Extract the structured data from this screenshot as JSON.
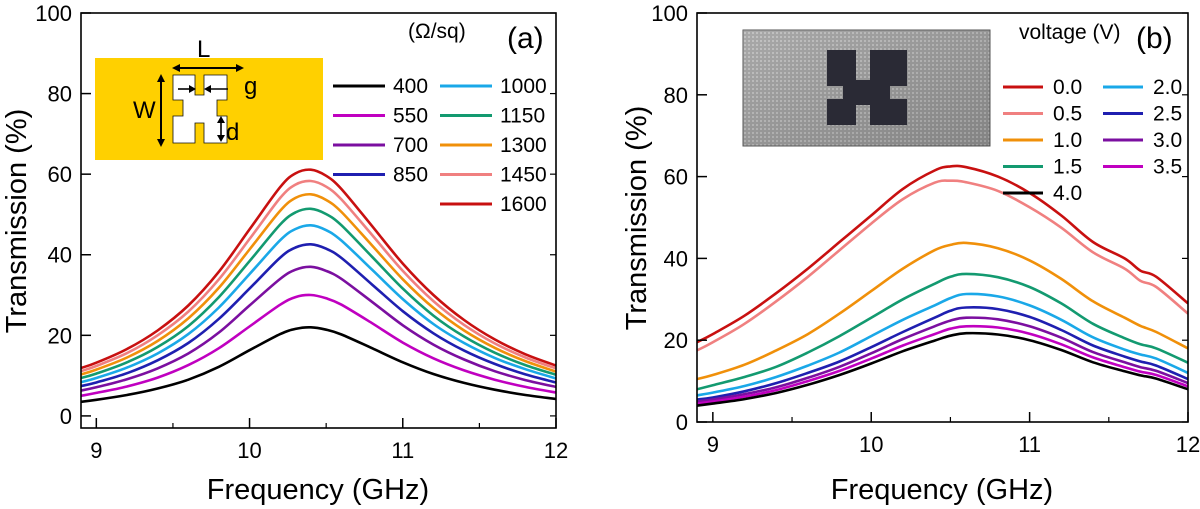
{
  "chart_data": [
    {
      "type": "line",
      "panel": "(a)",
      "xlabel": "Frequency (GHz)",
      "ylabel": "Transmission (%)",
      "xlim": [
        8.9,
        12
      ],
      "ylim": [
        -3,
        100
      ],
      "xticks": [
        9,
        10,
        11,
        12
      ],
      "yticks": [
        0,
        20,
        40,
        60,
        80,
        100
      ],
      "legend_title": "(Ω/sq)",
      "inset_labels": {
        "L": "L",
        "W": "W",
        "g": "g",
        "d": "d"
      },
      "inset_fill": "#FFD000",
      "x": [
        8.9,
        9.0,
        9.2,
        9.4,
        9.6,
        9.8,
        10.0,
        10.2,
        10.3,
        10.4,
        10.5,
        10.6,
        10.8,
        11.0,
        11.2,
        11.4,
        11.6,
        11.8,
        12.0
      ],
      "series": [
        {
          "name": "400",
          "color": "#000000",
          "values": [
            3.5,
            4.0,
            5.2,
            6.8,
            9.0,
            12.2,
            16.3,
            20.3,
            21.6,
            22.0,
            21.4,
            20.2,
            16.8,
            13.3,
            10.4,
            8.2,
            6.5,
            5.2,
            4.2
          ]
        },
        {
          "name": "550",
          "color": "#C000C0",
          "values": [
            5.0,
            5.7,
            7.3,
            9.5,
            12.6,
            16.8,
            22.2,
            27.6,
            29.5,
            30.0,
            29.2,
            27.6,
            23.0,
            18.2,
            14.3,
            11.3,
            9.0,
            7.2,
            5.8
          ]
        },
        {
          "name": "700",
          "color": "#7B0FA0",
          "values": [
            6.3,
            7.1,
            9.1,
            11.8,
            15.5,
            20.7,
            27.4,
            34.0,
            36.3,
            37.0,
            36.0,
            34.0,
            28.3,
            22.5,
            17.7,
            14.0,
            11.1,
            8.9,
            7.2
          ]
        },
        {
          "name": "850",
          "color": "#1F1FB0",
          "values": [
            7.4,
            8.3,
            10.6,
            13.8,
            18.1,
            24.1,
            31.6,
            39.3,
            41.8,
            42.6,
            41.5,
            39.2,
            32.6,
            26.0,
            20.5,
            16.2,
            12.9,
            10.3,
            8.3
          ]
        },
        {
          "name": "1000",
          "color": "#1AA8E8",
          "values": [
            8.4,
            9.4,
            12.0,
            15.5,
            20.3,
            26.9,
            35.2,
            43.6,
            46.4,
            47.3,
            46.1,
            43.5,
            36.3,
            29.0,
            22.8,
            18.1,
            14.4,
            11.6,
            9.3
          ]
        },
        {
          "name": "1150",
          "color": "#139A70",
          "values": [
            9.4,
            10.5,
            13.3,
            17.1,
            22.3,
            29.5,
            38.4,
            47.5,
            50.5,
            51.4,
            50.1,
            47.3,
            39.5,
            31.6,
            24.9,
            19.7,
            15.7,
            12.6,
            10.2
          ]
        },
        {
          "name": "1300",
          "color": "#F0900A",
          "values": [
            10.3,
            11.5,
            14.5,
            18.6,
            24.2,
            31.8,
            41.3,
            50.9,
            54.1,
            55.0,
            53.6,
            50.6,
            42.3,
            33.9,
            26.8,
            21.2,
            16.9,
            13.6,
            11.0
          ]
        },
        {
          "name": "1450",
          "color": "#F08080",
          "values": [
            11.1,
            12.4,
            15.6,
            20.0,
            25.9,
            33.9,
            43.9,
            54.1,
            57.4,
            58.3,
            56.9,
            53.7,
            44.9,
            36.0,
            28.5,
            22.6,
            18.0,
            14.5,
            11.8
          ]
        },
        {
          "name": "1600",
          "color": "#C81010",
          "values": [
            11.9,
            13.2,
            16.6,
            21.2,
            27.4,
            35.8,
            46.3,
            56.8,
            60.2,
            61.1,
            59.6,
            56.3,
            47.1,
            37.8,
            30.0,
            23.8,
            19.0,
            15.3,
            12.5
          ]
        }
      ]
    },
    {
      "type": "line",
      "panel": "(b)",
      "xlabel": "Frequency (GHz)",
      "ylabel": "Transmission (%)",
      "xlim": [
        8.9,
        12
      ],
      "ylim": [
        0,
        100
      ],
      "xticks": [
        9,
        10,
        11,
        12
      ],
      "yticks": [
        0,
        20,
        40,
        60,
        80,
        100
      ],
      "legend_title": "voltage (V)",
      "x": [
        8.9,
        9.0,
        9.2,
        9.4,
        9.6,
        9.8,
        10.0,
        10.2,
        10.4,
        10.5,
        10.6,
        10.8,
        11.0,
        11.2,
        11.4,
        11.6,
        11.7,
        11.8,
        12.0
      ],
      "series": [
        {
          "name": "0.0",
          "color": "#C81010",
          "values": [
            19.5,
            21.5,
            26.0,
            31.5,
            37.5,
            44.0,
            50.5,
            57.0,
            61.5,
            62.5,
            62.3,
            60.0,
            56.0,
            50.5,
            44.0,
            40.0,
            37.0,
            35.5,
            29.0
          ]
        },
        {
          "name": "0.5",
          "color": "#F08080",
          "values": [
            17.5,
            19.5,
            24.0,
            29.5,
            35.5,
            42.0,
            48.5,
            54.5,
            58.5,
            59.0,
            58.6,
            56.5,
            52.5,
            47.5,
            41.5,
            37.5,
            34.5,
            33.0,
            26.5
          ]
        },
        {
          "name": "1.0",
          "color": "#F0900A",
          "values": [
            10.5,
            11.5,
            14.0,
            17.5,
            21.5,
            26.5,
            32.0,
            37.5,
            42.0,
            43.3,
            43.8,
            42.5,
            39.5,
            35.0,
            29.5,
            25.5,
            23.5,
            22.0,
            18.0
          ]
        },
        {
          "name": "1.5",
          "color": "#139A70",
          "values": [
            8.0,
            9.0,
            11.0,
            13.5,
            17.0,
            21.0,
            25.5,
            30.0,
            33.8,
            35.5,
            36.2,
            35.4,
            33.0,
            29.0,
            24.0,
            20.5,
            19.0,
            18.0,
            14.5
          ]
        },
        {
          "name": "2.0",
          "color": "#1AA8E8",
          "values": [
            6.5,
            7.2,
            8.8,
            11.0,
            13.8,
            17.0,
            21.0,
            25.0,
            28.5,
            30.3,
            31.3,
            30.7,
            28.5,
            25.0,
            20.7,
            17.7,
            16.5,
            15.5,
            12.0
          ]
        },
        {
          "name": "2.5",
          "color": "#1F1FB0",
          "values": [
            5.5,
            6.0,
            7.5,
            9.5,
            12.0,
            14.8,
            18.3,
            22.0,
            25.5,
            27.2,
            28.0,
            27.6,
            25.7,
            22.5,
            18.7,
            16.0,
            14.8,
            13.8,
            10.5
          ]
        },
        {
          "name": "3.0",
          "color": "#7B0FA0",
          "values": [
            5.0,
            5.5,
            6.8,
            8.5,
            10.8,
            13.5,
            16.8,
            20.3,
            23.4,
            24.8,
            25.5,
            25.1,
            23.4,
            20.6,
            17.1,
            14.6,
            13.4,
            12.5,
            9.5
          ]
        },
        {
          "name": "3.5",
          "color": "#C000C0",
          "values": [
            4.5,
            5.0,
            6.2,
            7.8,
            10.0,
            12.5,
            15.5,
            18.7,
            21.5,
            22.8,
            23.4,
            23.1,
            21.6,
            19.0,
            15.8,
            13.4,
            12.3,
            11.5,
            8.7
          ]
        },
        {
          "name": "4.0",
          "color": "#000000",
          "values": [
            4.0,
            4.5,
            5.6,
            7.1,
            9.1,
            11.5,
            14.3,
            17.3,
            19.9,
            21.1,
            21.7,
            21.4,
            20.0,
            17.6,
            14.6,
            12.4,
            11.4,
            10.6,
            8.0
          ]
        }
      ]
    }
  ]
}
